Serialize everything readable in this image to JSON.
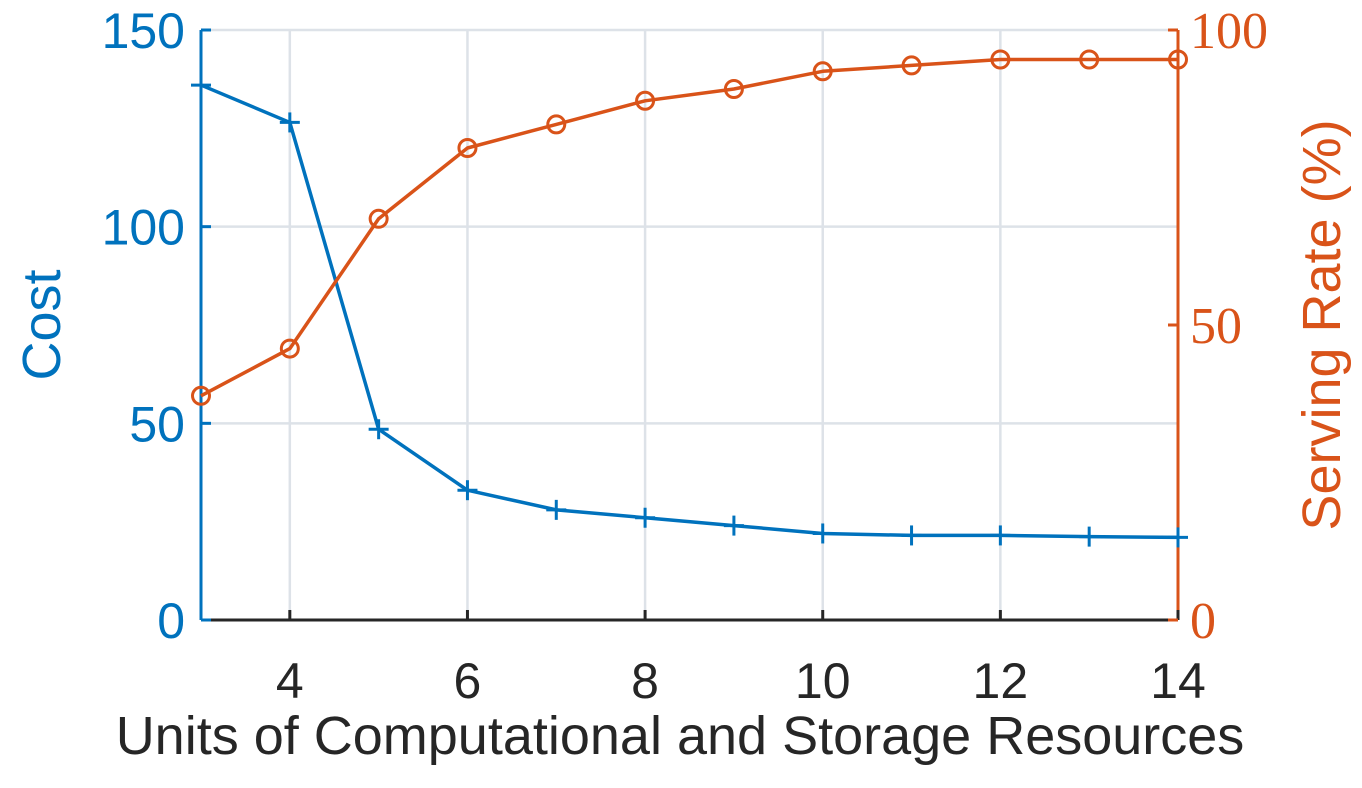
{
  "chart_data": {
    "type": "line",
    "xlabel": "Units of Computational and Storage Resources",
    "ylabel_left": "Cost",
    "ylabel_right": "Serving Rate (%)",
    "xlim": [
      3,
      14
    ],
    "ylim_left": [
      0,
      150
    ],
    "ylim_right": [
      0,
      100
    ],
    "x_ticks": [
      "4",
      "6",
      "8",
      "10",
      "12",
      "14"
    ],
    "y_ticks_left": [
      "0",
      "50",
      "100",
      "150"
    ],
    "y_ticks_right": [
      "0",
      "50",
      "100"
    ],
    "grid": true,
    "x": [
      3,
      4,
      5,
      6,
      7,
      8,
      9,
      10,
      11,
      12,
      13,
      14
    ],
    "series": [
      {
        "name": "Cost",
        "axis": "left",
        "marker": "plus",
        "color": "#0072BD",
        "values": [
          136,
          126.5,
          48.5,
          33,
          28,
          26,
          24,
          22,
          21.5,
          21.5,
          21.2,
          21
        ]
      },
      {
        "name": "Serving Rate (%)",
        "axis": "right",
        "marker": "circle",
        "color": "#D95319",
        "values": [
          38,
          46,
          68,
          80,
          84,
          88,
          90,
          93,
          94,
          95,
          95,
          95
        ]
      }
    ]
  }
}
